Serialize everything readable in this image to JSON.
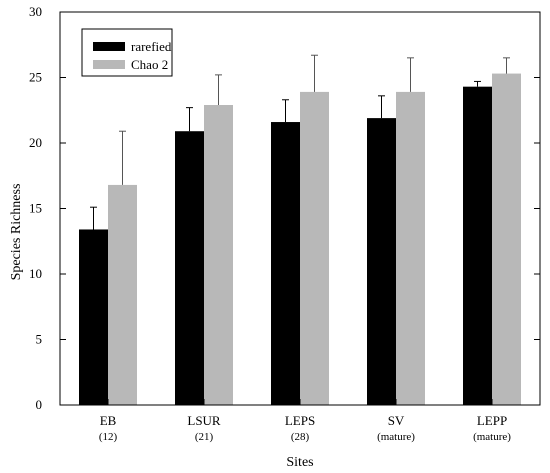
{
  "chart_data": {
    "type": "bar",
    "title": "",
    "xlabel": "Sites",
    "ylabel": "Species Richness",
    "ylim": [
      0,
      30
    ],
    "yticks": [
      0,
      5,
      10,
      15,
      20,
      25,
      30
    ],
    "categories": [
      "EB",
      "LSUR",
      "LEPS",
      "SV",
      "LEPP"
    ],
    "category_sublabels": [
      "(12)",
      "(21)",
      "(28)",
      "(mature)",
      "(mature)"
    ],
    "series": [
      {
        "name": "rarefied",
        "color": "#000000",
        "values": [
          13.4,
          20.9,
          21.6,
          21.9,
          24.3
        ],
        "error_upper": [
          15.1,
          22.7,
          23.3,
          23.6,
          24.7
        ]
      },
      {
        "name": "Chao 2",
        "color": "#b8b8b8",
        "values": [
          16.8,
          22.9,
          23.9,
          23.9,
          25.3
        ],
        "error_upper": [
          20.9,
          25.2,
          26.7,
          26.5,
          26.5
        ]
      }
    ],
    "legend_position": "top-left",
    "grid": false
  }
}
